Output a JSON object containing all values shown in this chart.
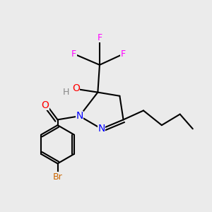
{
  "background_color": "#ebebeb",
  "bond_color": "#000000",
  "atom_colors": {
    "N": "#0000ff",
    "O": "#ff0000",
    "F": "#ff00ff",
    "Br": "#cc6600",
    "H": "#888888",
    "C": "#000000"
  },
  "figsize": [
    3.0,
    3.0
  ],
  "dpi": 100,
  "lw": 1.5
}
